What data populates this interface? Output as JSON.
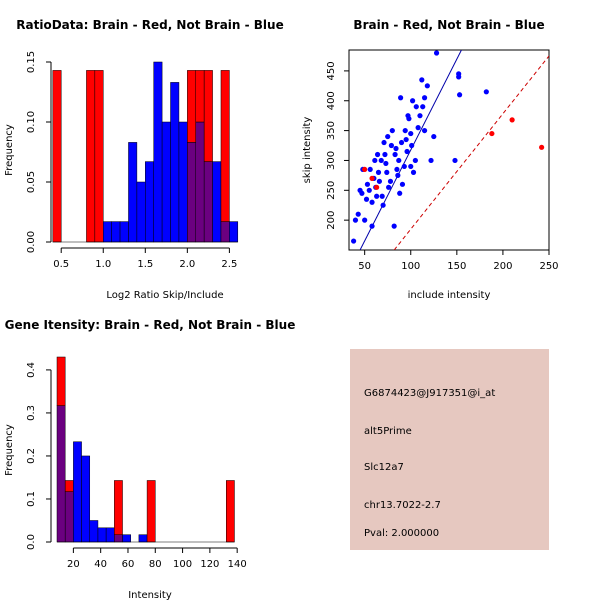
{
  "colors": {
    "red": "#ff0000",
    "blue": "#0000ff",
    "purple": "#6b0080",
    "info_bg": "#e6c8c0",
    "pval": "#cc0000",
    "diag_line": "#0000aa",
    "ref_line": "#cc0000"
  },
  "chart_data": [
    {
      "id": "ratio",
      "type": "bar",
      "subtype": "overlaid-histogram",
      "title": "RatioData: Brain - Red, Not Brain - Blue",
      "xlabel": "Log2 Ratio Skip/Include",
      "ylabel": "Frequency",
      "xlim": [
        0.45,
        2.65
      ],
      "ylim": [
        0,
        0.15
      ],
      "xticks": [
        0.5,
        1.0,
        1.5,
        2.0,
        2.5
      ],
      "xtick_labels": [
        "0.5",
        "1.0",
        "1.5",
        "2.0",
        "2.5"
      ],
      "yticks": [
        0.0,
        0.05,
        0.1,
        0.15
      ],
      "ytick_labels": [
        "0.00",
        "0.05",
        "0.10",
        "0.15"
      ],
      "bin_width": 0.1,
      "series": [
        {
          "name": "Brain",
          "color": "red",
          "bins": [
            [
              0.4,
              0.143
            ],
            [
              0.8,
              0.143
            ],
            [
              0.9,
              0.143
            ],
            [
              2.0,
              0.143
            ],
            [
              2.1,
              0.143
            ],
            [
              2.2,
              0.143
            ],
            [
              2.4,
              0.143
            ]
          ]
        },
        {
          "name": "Not Brain",
          "color": "blue",
          "bins": [
            [
              1.0,
              0.017
            ],
            [
              1.1,
              0.017
            ],
            [
              1.2,
              0.017
            ],
            [
              1.3,
              0.083
            ],
            [
              1.4,
              0.05
            ],
            [
              1.5,
              0.067
            ],
            [
              1.6,
              0.15
            ],
            [
              1.7,
              0.1
            ],
            [
              1.8,
              0.133
            ],
            [
              1.9,
              0.1
            ],
            [
              2.0,
              0.083
            ],
            [
              2.1,
              0.1
            ],
            [
              2.2,
              0.067
            ],
            [
              2.3,
              0.067
            ],
            [
              2.4,
              0.017
            ],
            [
              2.5,
              0.017
            ]
          ]
        }
      ]
    },
    {
      "id": "scatter",
      "type": "scatter",
      "title": "Brain - Red, Not Brain - Blue",
      "xlabel": "include intensity",
      "ylabel": "skip intensity",
      "xlim": [
        33,
        250
      ],
      "ylim": [
        150,
        485
      ],
      "xticks": [
        50,
        100,
        150,
        200,
        250
      ],
      "xtick_labels": [
        "50",
        "100",
        "150",
        "200",
        "250"
      ],
      "yticks": [
        200,
        250,
        300,
        350,
        400,
        450
      ],
      "ytick_labels": [
        "200",
        "250",
        "300",
        "350",
        "400",
        "450"
      ],
      "lines": [
        {
          "name": "fit",
          "color": "diag_line",
          "dashed": false,
          "p1": [
            45,
            150
          ],
          "p2": [
            155,
            485
          ]
        },
        {
          "name": "reference",
          "color": "ref_line",
          "dashed": true,
          "p1": [
            82,
            150
          ],
          "p2": [
            250,
            475
          ]
        }
      ],
      "series": [
        {
          "name": "Not Brain",
          "color": "blue",
          "points": [
            [
              38,
              165
            ],
            [
              40,
              200
            ],
            [
              43,
              210
            ],
            [
              45,
              250
            ],
            [
              47,
              245
            ],
            [
              48,
              285
            ],
            [
              50,
              200
            ],
            [
              52,
              235
            ],
            [
              53,
              260
            ],
            [
              55,
              250
            ],
            [
              56,
              285
            ],
            [
              58,
              230
            ],
            [
              58,
              190
            ],
            [
              60,
              270
            ],
            [
              61,
              300
            ],
            [
              62,
              255
            ],
            [
              63,
              240
            ],
            [
              64,
              310
            ],
            [
              65,
              280
            ],
            [
              66,
              265
            ],
            [
              68,
              300
            ],
            [
              69,
              240
            ],
            [
              70,
              225
            ],
            [
              71,
              330
            ],
            [
              72,
              310
            ],
            [
              73,
              295
            ],
            [
              74,
              280
            ],
            [
              75,
              340
            ],
            [
              76,
              255
            ],
            [
              78,
              265
            ],
            [
              79,
              325
            ],
            [
              80,
              350
            ],
            [
              82,
              190
            ],
            [
              83,
              310
            ],
            [
              84,
              320
            ],
            [
              85,
              285
            ],
            [
              86,
              275
            ],
            [
              87,
              300
            ],
            [
              88,
              245
            ],
            [
              89,
              405
            ],
            [
              90,
              330
            ],
            [
              91,
              260
            ],
            [
              93,
              290
            ],
            [
              94,
              350
            ],
            [
              95,
              335
            ],
            [
              96,
              315
            ],
            [
              97,
              375
            ],
            [
              98,
              370
            ],
            [
              100,
              345
            ],
            [
              100,
              290
            ],
            [
              101,
              325
            ],
            [
              102,
              400
            ],
            [
              103,
              280
            ],
            [
              105,
              300
            ],
            [
              106,
              390
            ],
            [
              108,
              355
            ],
            [
              110,
              375
            ],
            [
              112,
              435
            ],
            [
              113,
              390
            ],
            [
              115,
              405
            ],
            [
              115,
              350
            ],
            [
              118,
              425
            ],
            [
              122,
              300
            ],
            [
              125,
              340
            ],
            [
              128,
              480
            ],
            [
              148,
              300
            ],
            [
              152,
              440
            ],
            [
              152,
              445
            ],
            [
              153,
              410
            ],
            [
              182,
              415
            ]
          ]
        },
        {
          "name": "Brain",
          "color": "red",
          "points": [
            [
              50,
              285
            ],
            [
              58,
              270
            ],
            [
              63,
              255
            ],
            [
              188,
              345
            ],
            [
              210,
              368
            ],
            [
              242,
              322
            ]
          ]
        }
      ]
    },
    {
      "id": "intensity",
      "type": "bar",
      "subtype": "overlaid-histogram",
      "title": "Gene Itensity: Brain - Red, Not Brain - Blue",
      "xlabel": "Intensity",
      "ylabel": "Frequency",
      "xlim": [
        8,
        145
      ],
      "ylim": [
        0,
        0.43
      ],
      "xticks": [
        20,
        40,
        60,
        80,
        100,
        120,
        140
      ],
      "xtick_labels": [
        "20",
        "40",
        "60",
        "80",
        "100",
        "120",
        "140"
      ],
      "yticks": [
        0.0,
        0.1,
        0.2,
        0.3,
        0.4
      ],
      "ytick_labels": [
        "0.0",
        "0.1",
        "0.2",
        "0.3",
        "0.4"
      ],
      "bin_width": 6,
      "series": [
        {
          "name": "Brain",
          "color": "red",
          "bins": [
            [
              8,
              0.43
            ],
            [
              14,
              0.143
            ],
            [
              50,
              0.143
            ],
            [
              74,
              0.143
            ],
            [
              132,
              0.143
            ]
          ]
        },
        {
          "name": "Not Brain",
          "color": "blue",
          "bins": [
            [
              8,
              0.317
            ],
            [
              14,
              0.117
            ],
            [
              20,
              0.233
            ],
            [
              26,
              0.2
            ],
            [
              32,
              0.05
            ],
            [
              38,
              0.033
            ],
            [
              44,
              0.033
            ],
            [
              50,
              0.017
            ],
            [
              56,
              0.017
            ],
            [
              68,
              0.017
            ]
          ]
        }
      ]
    }
  ],
  "info_panel": {
    "probe_id": "G6874423@J917351@i_at",
    "event_type": "alt5Prime",
    "gene": "Slc12a7",
    "location": "chr13.7022-2.7",
    "pval": "Pval: 2.000000"
  }
}
